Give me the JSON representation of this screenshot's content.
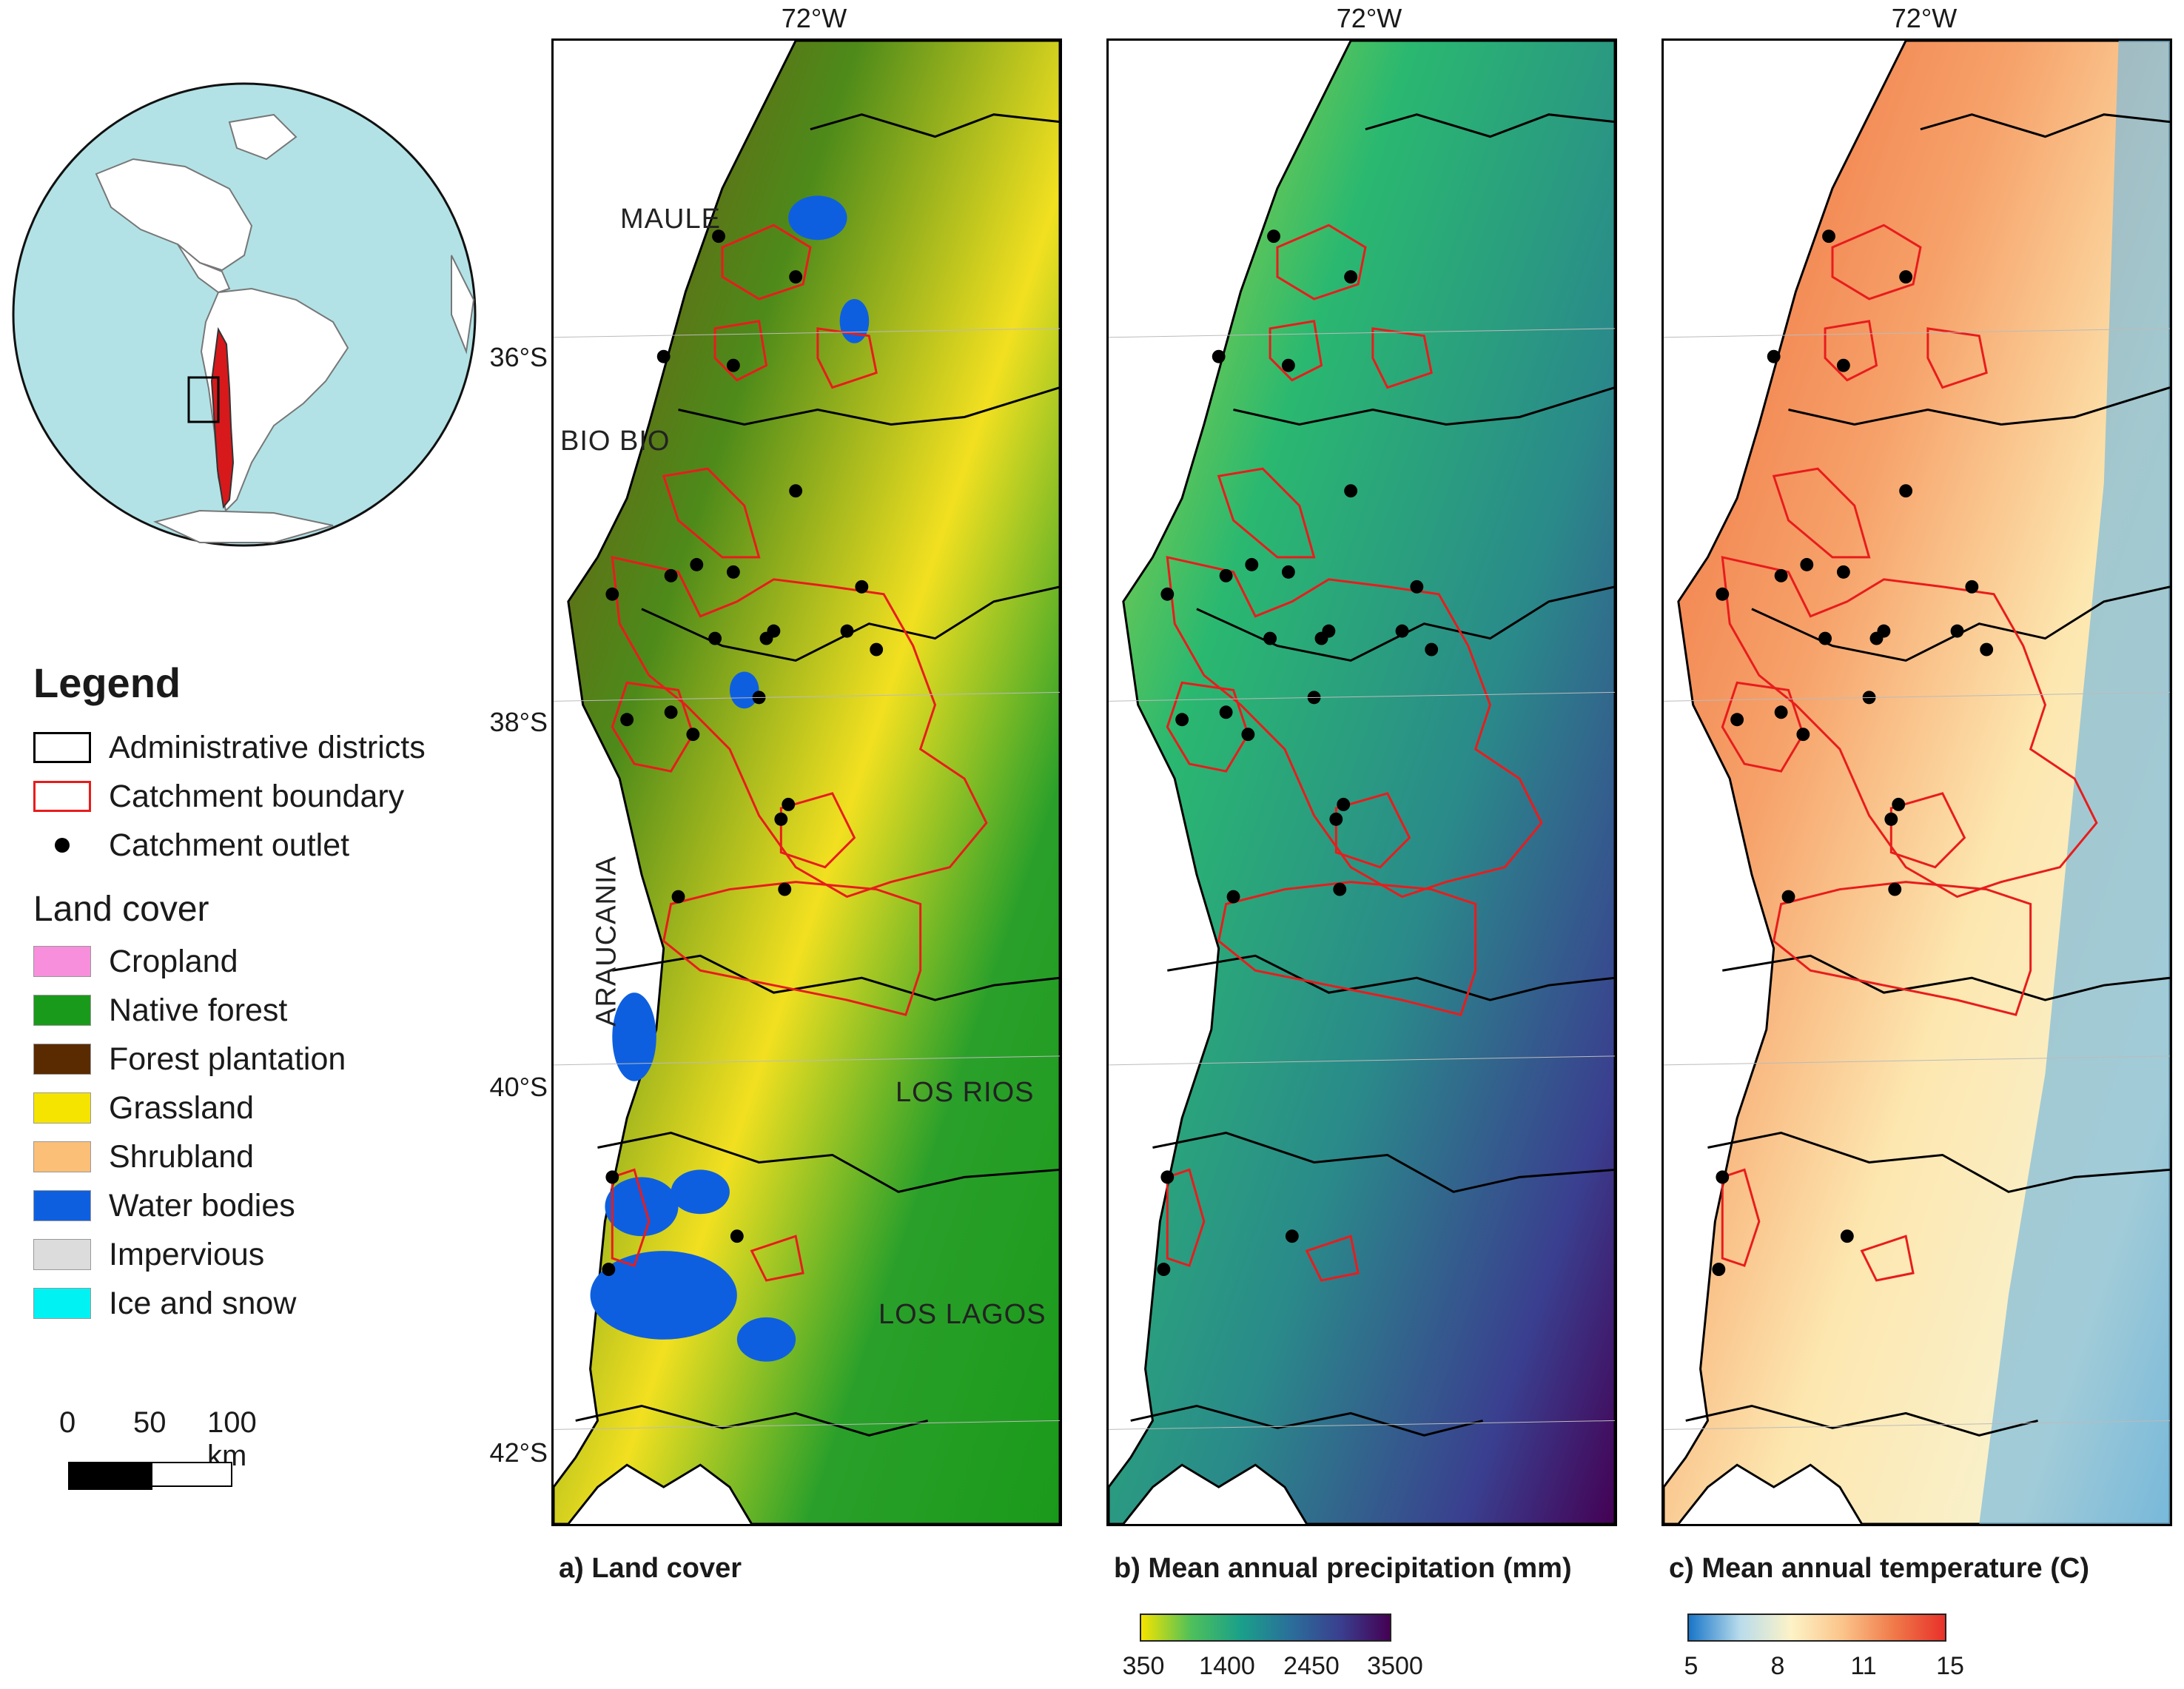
{
  "legend": {
    "title": "Legend",
    "items": [
      {
        "label": "Administrative districts",
        "kind": "box-black"
      },
      {
        "label": "Catchment boundary",
        "kind": "box-red"
      },
      {
        "label": "Catchment outlet",
        "kind": "dot"
      }
    ]
  },
  "land_cover": {
    "title": "Land cover",
    "classes": [
      {
        "label": "Cropland",
        "color": "#f78fdc"
      },
      {
        "label": "Native forest",
        "color": "#1a9a1a"
      },
      {
        "label": "Forest plantation",
        "color": "#5a2a00"
      },
      {
        "label": "Grassland",
        "color": "#f5e400"
      },
      {
        "label": "Shrubland",
        "color": "#fbbf77"
      },
      {
        "label": "Water bodies",
        "color": "#0e5fe0"
      },
      {
        "label": "Impervious",
        "color": "#dcdcdc"
      },
      {
        "label": "Ice and snow",
        "color": "#00f2f2"
      }
    ]
  },
  "scalebar": {
    "labels": [
      "0",
      "50",
      "100 km"
    ]
  },
  "axes": {
    "lon_label": "72°W",
    "lat_labels": [
      "36°S",
      "38°S",
      "40°S",
      "42°S"
    ]
  },
  "regions": [
    "MAULE",
    "BIO BIO",
    "ARAUCANIA",
    "LOS RIOS",
    "LOS LAGOS"
  ],
  "panels": {
    "a": {
      "caption": "a) Land cover"
    },
    "b": {
      "caption": "b) Mean annual precipitation (mm)",
      "colorbar": {
        "ticks": [
          "350",
          "1400",
          "2450",
          "3500"
        ],
        "colors": [
          "#f5e400",
          "#4fc05a",
          "#1aa08a",
          "#2a6f9a",
          "#3a3f8f",
          "#440154"
        ]
      }
    },
    "c": {
      "caption": "c) Mean annual temperature (C)",
      "colorbar": {
        "ticks": [
          "5",
          "8",
          "11",
          "15"
        ],
        "colors": [
          "#1976c9",
          "#b9dceb",
          "#fdf3c7",
          "#fbc48a",
          "#f07a4a",
          "#e8312a"
        ]
      }
    }
  },
  "colors": {
    "ocean": "#b2e2e6",
    "land": "#ffffff",
    "chile": "#d7191c",
    "catchment": "#e81c1c",
    "district": "#000000"
  }
}
